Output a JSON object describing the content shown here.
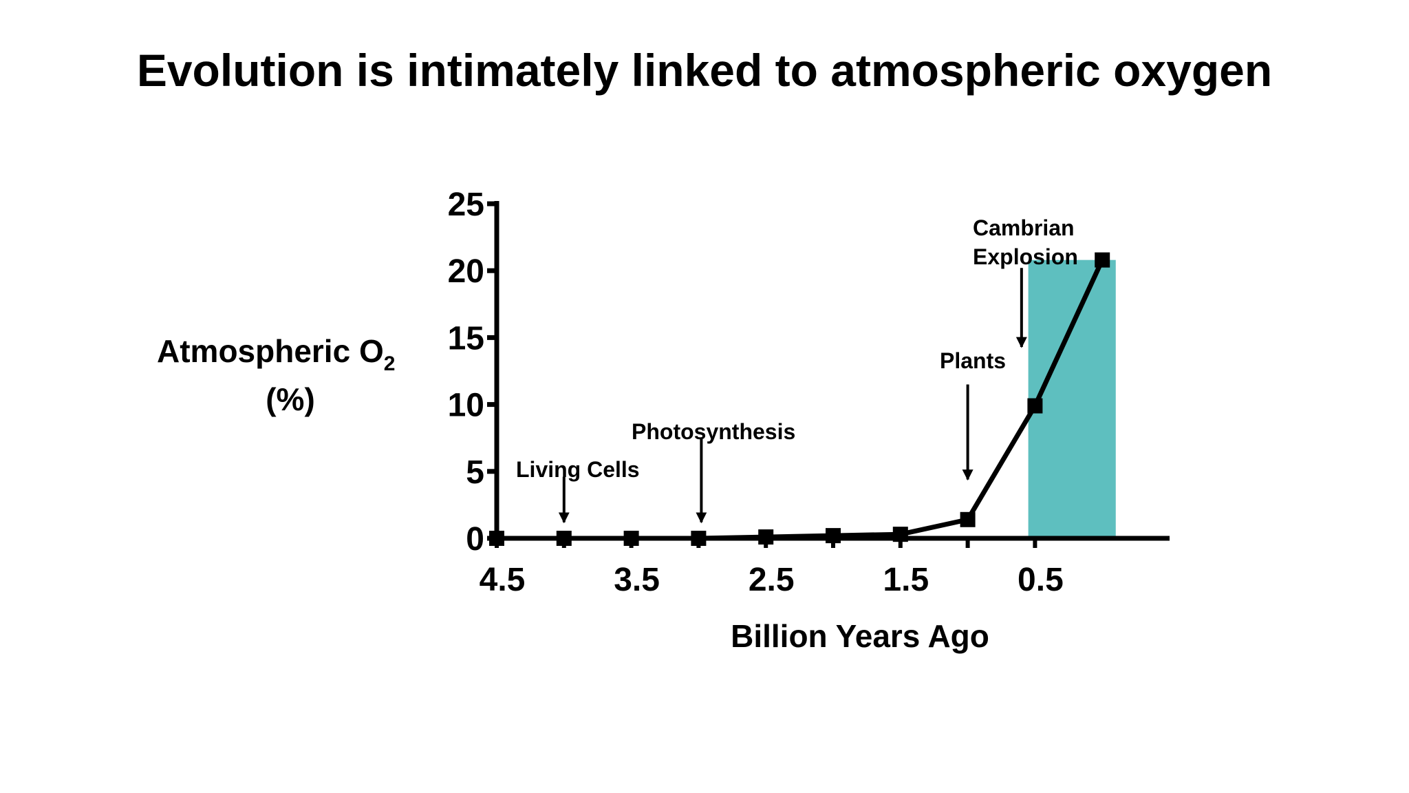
{
  "slide": {
    "title": "Evolution is intimately linked to atmospheric oxygen"
  },
  "chart_data": {
    "type": "line",
    "xlabel": "Billion Years Ago",
    "ylabel_main": "Atmospheric O",
    "ylabel_sub": "2",
    "ylabel_unit": "(%)",
    "x_reversed": true,
    "xlim": [
      4.5,
      -0.5
    ],
    "ylim": [
      0,
      25
    ],
    "x_ticks": [
      4.5,
      4.0,
      3.5,
      3.0,
      2.5,
      2.0,
      1.5,
      1.0,
      0.5
    ],
    "x_tick_labels": [
      "4.5",
      "3.5",
      "2.5",
      "1.5",
      "0.5"
    ],
    "x_tick_label_values": [
      4.5,
      3.5,
      2.5,
      1.5,
      0.5
    ],
    "y_ticks": [
      0,
      5,
      10,
      15,
      20,
      25
    ],
    "y_tick_labels": [
      "0",
      "5",
      "10",
      "15",
      "20",
      "25"
    ],
    "series": [
      {
        "x": [
          4.5,
          4.0,
          3.5,
          3.0,
          2.5,
          2.0,
          1.5,
          1.0,
          0.5,
          0.0
        ],
        "y": [
          0,
          0,
          0,
          0,
          0.1,
          0.2,
          0.3,
          1.4,
          9.9,
          20.8
        ]
      }
    ],
    "highlight_band": {
      "x_from": 0.55,
      "x_to": -0.1,
      "y_to": 20.8,
      "color": "#5ebfbf"
    },
    "annotations": [
      {
        "lines": [
          "Living Cells"
        ],
        "x": 4.0,
        "arrow_from_y": 4.6,
        "arrow_to_y": 1.2
      },
      {
        "lines": [
          "Photosynthesis"
        ],
        "x": 3.0,
        "arrow_from_y": 7.5,
        "arrow_to_y": 1.2
      },
      {
        "lines": [
          "Plants"
        ],
        "x": 1.0,
        "arrow_from_y": 11.5,
        "arrow_to_y": 4.4
      },
      {
        "lines": [
          "Cambrian",
          "Explosion"
        ],
        "x": 0.6,
        "arrow_from_y": 20.2,
        "arrow_to_y": 14.3
      }
    ],
    "colors": {
      "line": "#000000",
      "band": "#5ebfbf"
    },
    "grid": false,
    "legend": "none"
  }
}
